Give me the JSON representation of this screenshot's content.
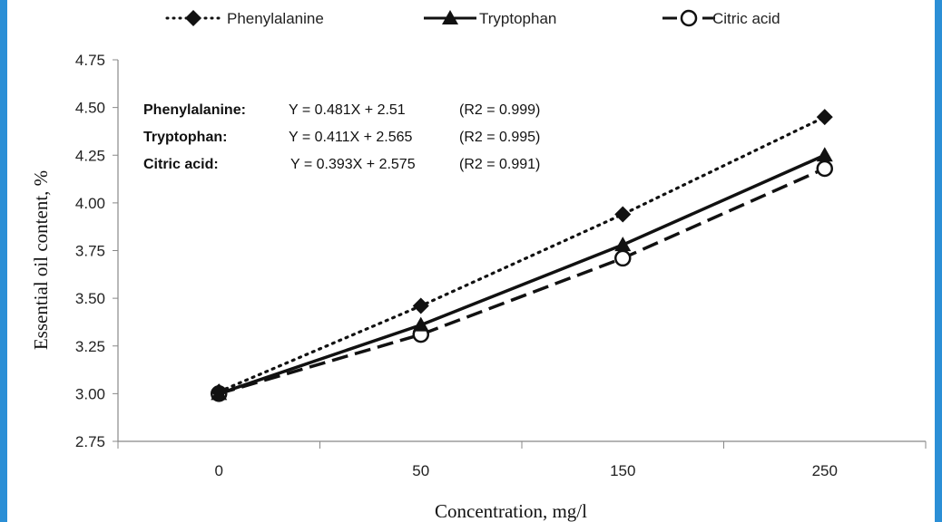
{
  "chart_data": {
    "type": "line",
    "categories": [
      "0",
      "50",
      "150",
      "250"
    ],
    "series": [
      {
        "name": "Phenylalanine",
        "values": [
          3.01,
          3.46,
          3.94,
          4.45
        ],
        "line_style": "dotted",
        "marker": "diamond",
        "color": "#111111"
      },
      {
        "name": "Tryptophan",
        "values": [
          3.0,
          3.36,
          3.78,
          4.25
        ],
        "line_style": "solid",
        "marker": "triangle",
        "color": "#111111"
      },
      {
        "name": "Citric acid",
        "values": [
          3.0,
          3.31,
          3.71,
          4.18
        ],
        "line_style": "dashed",
        "marker": "open-circle",
        "color": "#111111"
      }
    ],
    "xlabel": "Concentration, mg/l",
    "ylabel": "Essential oil content, %",
    "ylim": [
      2.75,
      4.75
    ],
    "yticks": [
      "2.75",
      "3.00",
      "3.25",
      "3.50",
      "3.75",
      "4.00",
      "4.25",
      "4.50",
      "4.75"
    ],
    "grid": false,
    "legend_position": "top",
    "annotations": [
      {
        "name": "Phenylalanine:",
        "equation": "Y = 0.481X + 2.51",
        "r2": "(R2  = 0.999)"
      },
      {
        "name": "Tryptophan:",
        "equation": "Y = 0.411X + 2.565",
        "r2": "(R2  = 0.995)"
      },
      {
        "name": "Citric acid:",
        "equation": "Y = 0.393X + 2.575",
        "r2": "(R2  = 0.991)"
      }
    ]
  }
}
